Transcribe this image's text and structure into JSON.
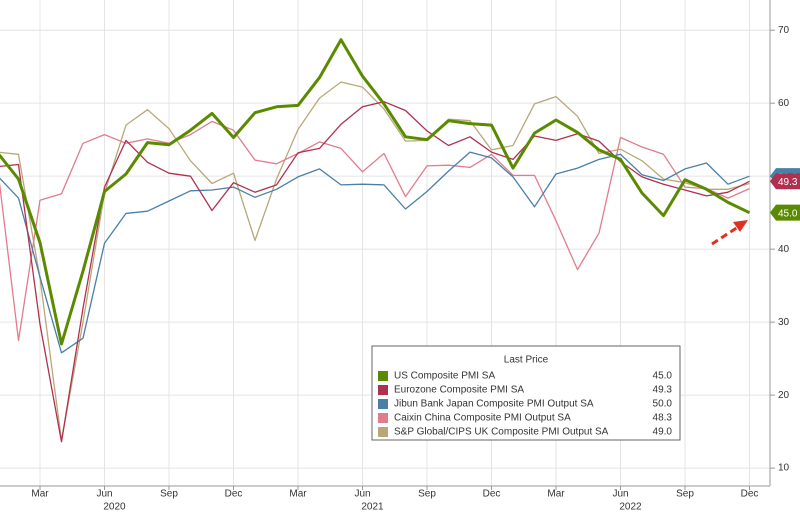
{
  "chart_data": {
    "type": "line",
    "categories": [
      null,
      null,
      "Mar",
      null,
      null,
      "Jun",
      null,
      null,
      "Sep",
      null,
      null,
      "Dec",
      null,
      null,
      "Mar",
      null,
      null,
      "Jun",
      null,
      null,
      "Sep",
      null,
      null,
      "Dec",
      null,
      null,
      "Mar",
      null,
      null,
      "Jun",
      null,
      null,
      "Sep",
      null,
      null,
      "Dec"
    ],
    "years": [
      "2020",
      "2021",
      "2022"
    ],
    "ylim": [
      7,
      74
    ],
    "yticks": [
      10,
      20,
      30,
      40,
      50,
      60,
      70
    ],
    "grid": true,
    "legend_title": "Last Price",
    "series": [
      {
        "name": "US Composite PMI SA",
        "color": "#5a8a00",
        "last_price": "45.0",
        "values": [
          53.3,
          49.6,
          40.9,
          27.0,
          37.0,
          47.9,
          50.3,
          54.6,
          54.3,
          56.3,
          58.6,
          55.3,
          58.7,
          59.5,
          59.7,
          63.5,
          68.7,
          63.7,
          59.9,
          55.4,
          55.0,
          57.6,
          57.2,
          57.0,
          51.1,
          55.9,
          57.7,
          56.0,
          53.6,
          52.3,
          47.7,
          44.6,
          49.5,
          48.2,
          46.4,
          45.0
        ]
      },
      {
        "name": "Eurozone Composite PMI SA",
        "color": "#b03050",
        "last_price": "49.3",
        "values": [
          51.3,
          51.6,
          29.7,
          13.6,
          31.9,
          48.5,
          54.9,
          51.9,
          50.4,
          50.0,
          45.3,
          49.1,
          47.8,
          48.8,
          53.2,
          53.8,
          57.1,
          59.5,
          60.2,
          59.0,
          56.2,
          54.2,
          55.4,
          53.3,
          52.3,
          55.5,
          54.9,
          55.8,
          54.8,
          52.0,
          49.9,
          48.9,
          48.1,
          47.3,
          47.8,
          49.3
        ]
      },
      {
        "name": "Jibun Bank Japan Composite PMI Output SA",
        "color": "#4a7fa8",
        "last_price": "50.0",
        "values": [
          50.1,
          47.0,
          36.2,
          25.8,
          27.8,
          40.8,
          44.9,
          45.2,
          46.6,
          48.0,
          48.1,
          48.5,
          47.1,
          48.2,
          49.9,
          51.0,
          48.8,
          48.9,
          48.8,
          45.5,
          47.9,
          50.7,
          53.3,
          52.5,
          49.9,
          45.8,
          50.3,
          51.1,
          52.3,
          53.0,
          50.2,
          49.4,
          51.0,
          51.8,
          48.9,
          50.0
        ]
      },
      {
        "name": "Caixin China Composite PMI Output SA",
        "color": "#e07c8c",
        "last_price": "48.3",
        "values": [
          51.9,
          27.5,
          46.7,
          47.6,
          54.5,
          55.7,
          54.5,
          55.1,
          54.5,
          55.7,
          57.5,
          56.3,
          52.2,
          51.7,
          53.1,
          54.7,
          53.8,
          50.6,
          53.1,
          47.2,
          51.4,
          51.5,
          51.2,
          53.0,
          50.1,
          50.1,
          43.9,
          37.2,
          42.2,
          55.3,
          54.0,
          53.0,
          48.5,
          48.3,
          47.0,
          48.3
        ]
      },
      {
        "name": "S&P Global/CIPS UK Composite PMI Output SA",
        "color": "#b8a878",
        "last_price": "49.0",
        "values": [
          53.3,
          53.0,
          36.0,
          13.8,
          30.0,
          47.7,
          57.0,
          59.1,
          56.5,
          52.1,
          49.0,
          50.4,
          41.2,
          49.6,
          56.4,
          60.7,
          62.9,
          62.2,
          59.2,
          54.8,
          54.9,
          57.8,
          57.6,
          53.6,
          54.2,
          59.9,
          60.9,
          58.2,
          53.1,
          53.7,
          52.1,
          49.6,
          49.1,
          48.2,
          48.2,
          49.0
        ]
      }
    ]
  }
}
